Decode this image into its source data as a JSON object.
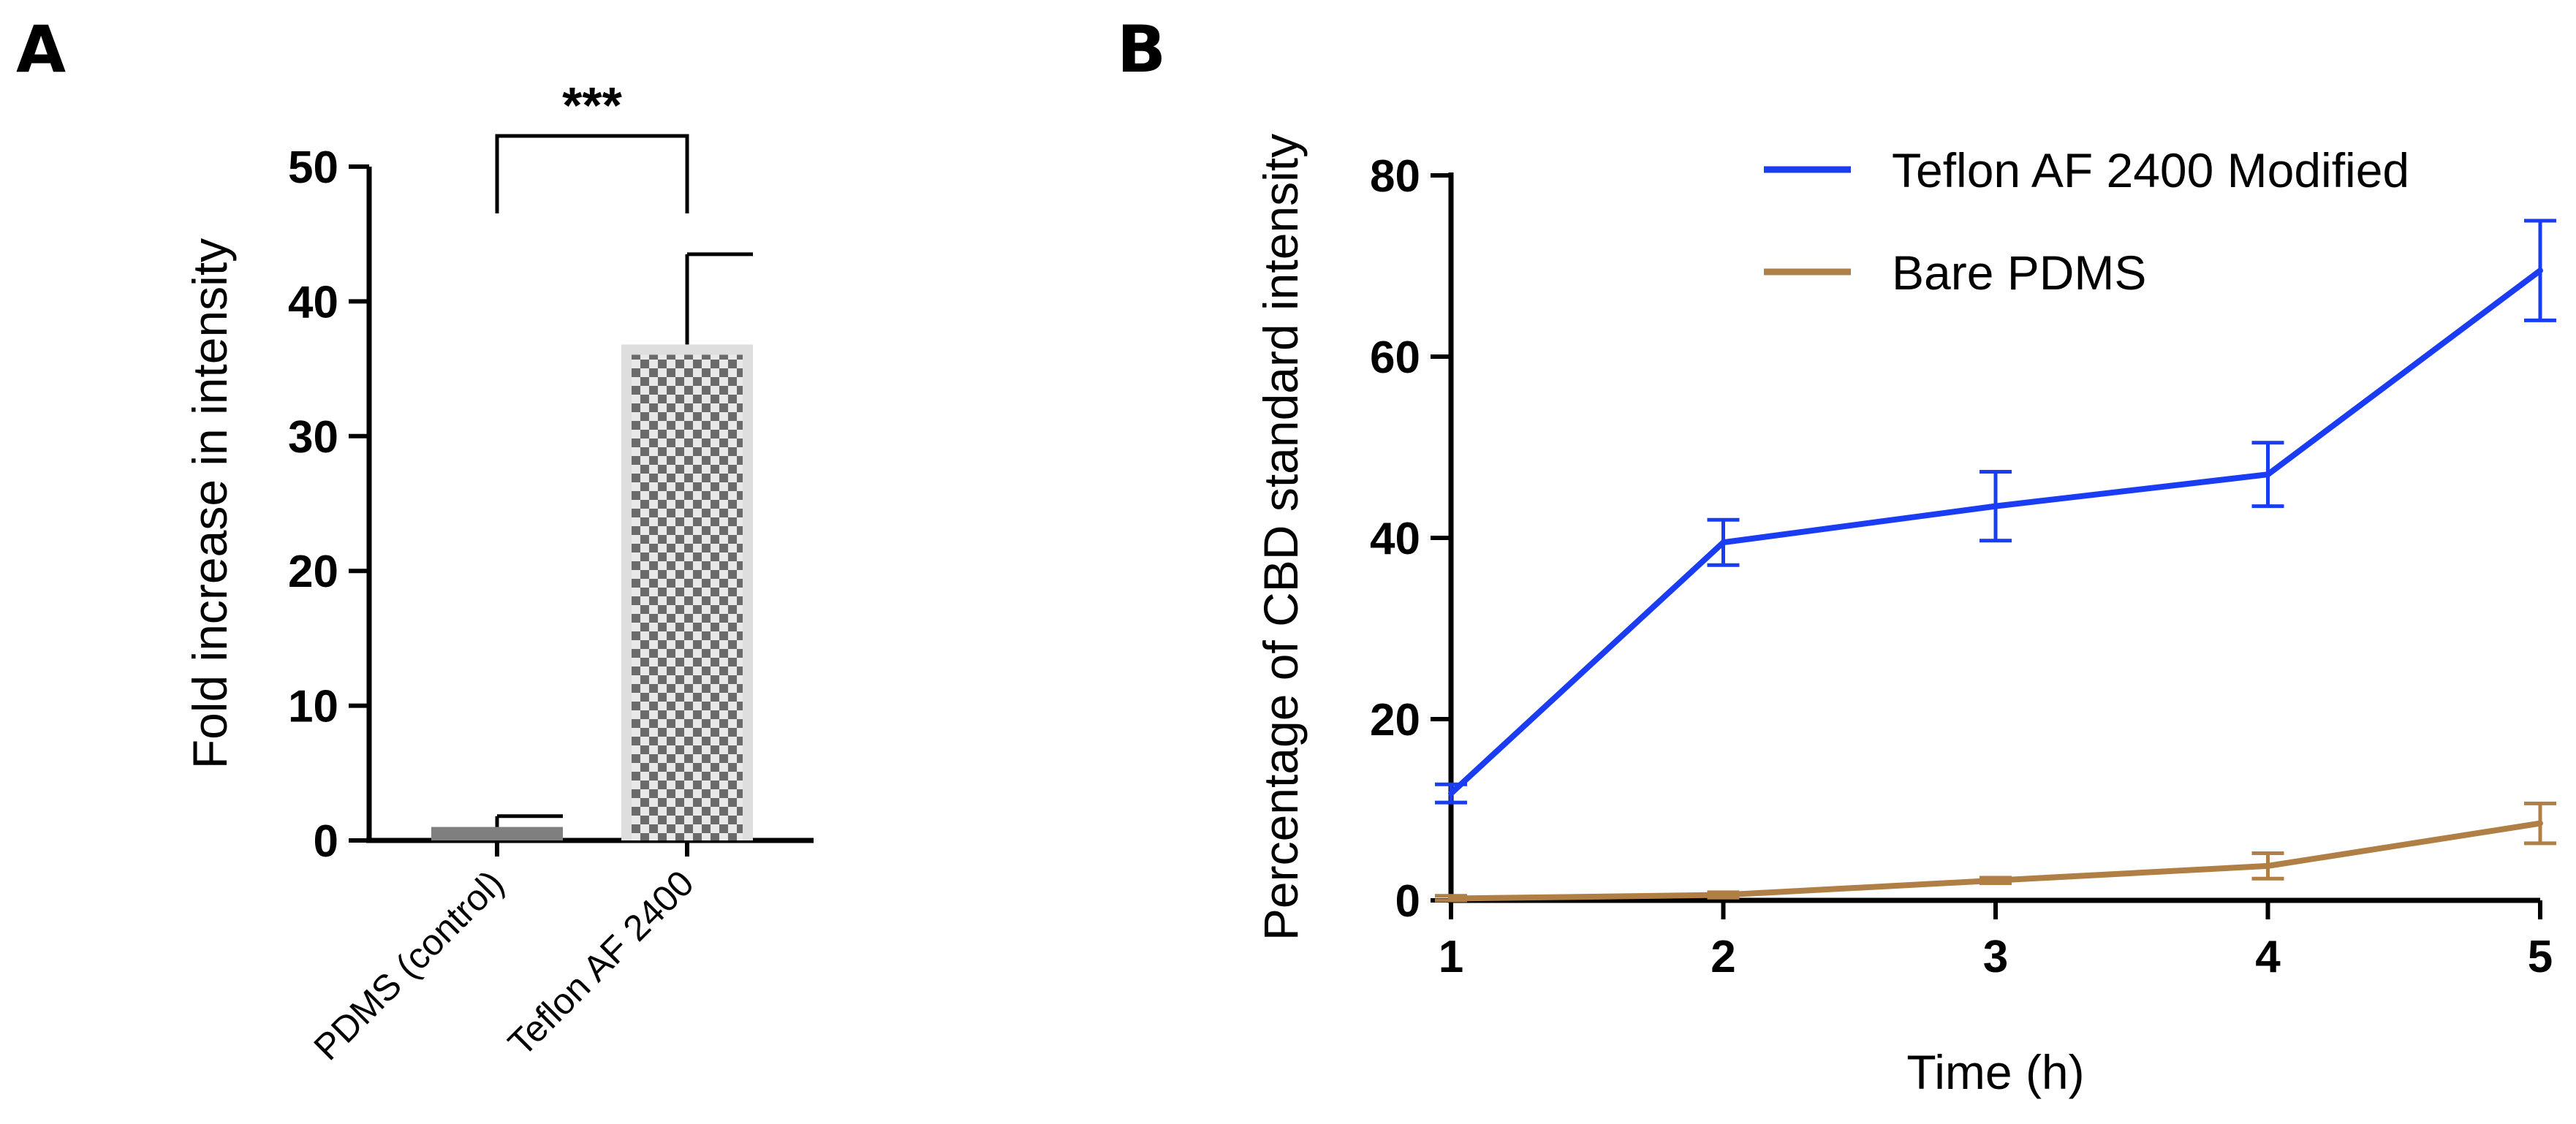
{
  "chart_data": [
    {
      "panel": "A",
      "type": "bar",
      "title": "",
      "xlabel": "",
      "ylabel": "Fold increase in  intensity",
      "ylim": [
        0,
        50
      ],
      "yticks": [
        0,
        10,
        20,
        30,
        40,
        50
      ],
      "ytick_labels": [
        "0",
        "10",
        "20",
        "30",
        "40",
        "50"
      ],
      "categories": [
        "PDMS (control)",
        "Teflon AF 2400"
      ],
      "values": [
        1.0,
        36.8
      ],
      "error_upper": [
        0.8,
        6.7
      ],
      "bar_colors": [
        "#7f7f7f",
        "#dedede"
      ],
      "bar_patterns": [
        "solid",
        "checkerboard"
      ],
      "significance": {
        "between": [
          0,
          1
        ],
        "label": "***"
      },
      "grid": false
    },
    {
      "panel": "B",
      "type": "line",
      "title": "",
      "xlabel": "Time (h)",
      "ylabel": "Percentage of CBD standard intensity",
      "x": [
        1,
        2,
        3,
        4,
        5
      ],
      "xticks": [
        1,
        2,
        3,
        4,
        5
      ],
      "xtick_labels": [
        "1",
        "2",
        "3",
        "4",
        "5"
      ],
      "ylim": [
        0,
        80
      ],
      "yticks": [
        0,
        20,
        40,
        60,
        80
      ],
      "ytick_labels": [
        "0",
        "20",
        "40",
        "60",
        "80"
      ],
      "legend_position": "top-right",
      "grid": false,
      "series": [
        {
          "name": "Teflon AF 2400 Modified",
          "color": "#1a3cf2",
          "values": [
            11.8,
            39.5,
            43.5,
            47.0,
            69.5
          ],
          "errors": [
            1.0,
            2.5,
            3.8,
            3.5,
            5.5
          ]
        },
        {
          "name": "Bare PDMS",
          "color": "#b07f45",
          "values": [
            0.2,
            0.6,
            2.2,
            3.8,
            8.5
          ],
          "errors": [
            0.3,
            0.3,
            0.3,
            1.4,
            2.2
          ]
        }
      ]
    }
  ]
}
